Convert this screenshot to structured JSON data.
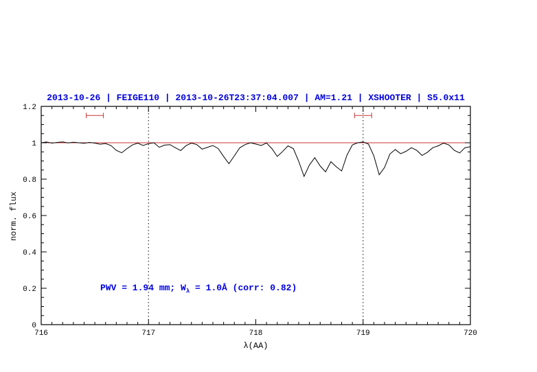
{
  "chart_data": {
    "type": "line",
    "title": "2013-10-26 | FEIGE110 | 2013-10-26T23:37:04.007 | AM=1.21 | XSHOOTER | S5.0x11",
    "xlabel": "λ(AA)",
    "ylabel": "norm. flux",
    "xlim": [
      716,
      720
    ],
    "ylim": [
      0,
      1.2
    ],
    "xticks": {
      "major": [
        716,
        717,
        718,
        719,
        720
      ],
      "labels": [
        "716",
        "717",
        "718",
        "719",
        "720"
      ],
      "minor_step": 0.1
    },
    "yticks": {
      "major": [
        0,
        0.2,
        0.4,
        0.6,
        0.8,
        1,
        1.2
      ],
      "labels": [
        "0",
        "0.2",
        "0.4",
        "0.6",
        "0.8",
        "1",
        "1.2"
      ],
      "minor_step": 0.05
    },
    "reference_line_y": 1.0,
    "dotted_vlines": [
      717,
      719
    ],
    "error_bars": [
      {
        "x1": 716.42,
        "x2": 716.58,
        "y": 1.15
      },
      {
        "x1": 718.92,
        "x2": 719.08,
        "y": 1.15
      }
    ],
    "annotation": {
      "pre": "PWV = 1.94 mm; W",
      "sub": "λ",
      "post": " = 1.0Å (corr: 0.82)"
    },
    "colors": {
      "title": "#0000dd",
      "annotation": "#0000dd",
      "reference": "#cc3333",
      "error_bar": "#cc3333",
      "spectrum": "#000000",
      "axis": "#000000"
    },
    "series": [
      {
        "name": "normalized spectrum",
        "x": [
          716.0,
          716.05,
          716.1,
          716.15,
          716.2,
          716.25,
          716.3,
          716.35,
          716.4,
          716.45,
          716.5,
          716.55,
          716.6,
          716.65,
          716.7,
          716.75,
          716.8,
          716.85,
          716.9,
          716.95,
          717.0,
          717.05,
          717.1,
          717.15,
          717.2,
          717.25,
          717.3,
          717.35,
          717.4,
          717.45,
          717.5,
          717.55,
          717.6,
          717.65,
          717.7,
          717.75,
          717.8,
          717.85,
          717.9,
          717.95,
          718.0,
          718.05,
          718.1,
          718.15,
          718.2,
          718.25,
          718.3,
          718.35,
          718.4,
          718.45,
          718.5,
          718.55,
          718.6,
          718.65,
          718.7,
          718.75,
          718.8,
          718.85,
          718.9,
          718.95,
          719.0,
          719.05,
          719.1,
          719.15,
          719.2,
          719.25,
          719.3,
          719.35,
          719.4,
          719.45,
          719.5,
          719.55,
          719.6,
          719.65,
          719.7,
          719.75,
          719.8,
          719.85,
          719.9,
          719.95,
          720.0
        ],
        "y": [
          1.0,
          1.004,
          0.998,
          1.002,
          1.005,
          0.999,
          1.003,
          1.0,
          0.997,
          1.002,
          0.998,
          0.992,
          0.996,
          0.985,
          0.958,
          0.945,
          0.968,
          0.988,
          0.998,
          0.985,
          0.995,
          1.0,
          0.975,
          0.987,
          0.99,
          0.973,
          0.957,
          0.984,
          0.998,
          0.99,
          0.965,
          0.975,
          0.985,
          0.968,
          0.925,
          0.885,
          0.928,
          0.972,
          0.99,
          1.0,
          0.993,
          0.985,
          0.999,
          0.968,
          0.925,
          0.952,
          0.983,
          0.968,
          0.898,
          0.815,
          0.878,
          0.918,
          0.872,
          0.84,
          0.896,
          0.868,
          0.845,
          0.932,
          0.988,
          1.0,
          1.004,
          0.993,
          0.928,
          0.824,
          0.864,
          0.938,
          0.963,
          0.94,
          0.953,
          0.973,
          0.958,
          0.93,
          0.948,
          0.973,
          0.983,
          0.998,
          0.988,
          0.958,
          0.944,
          0.973,
          0.978
        ]
      }
    ]
  }
}
